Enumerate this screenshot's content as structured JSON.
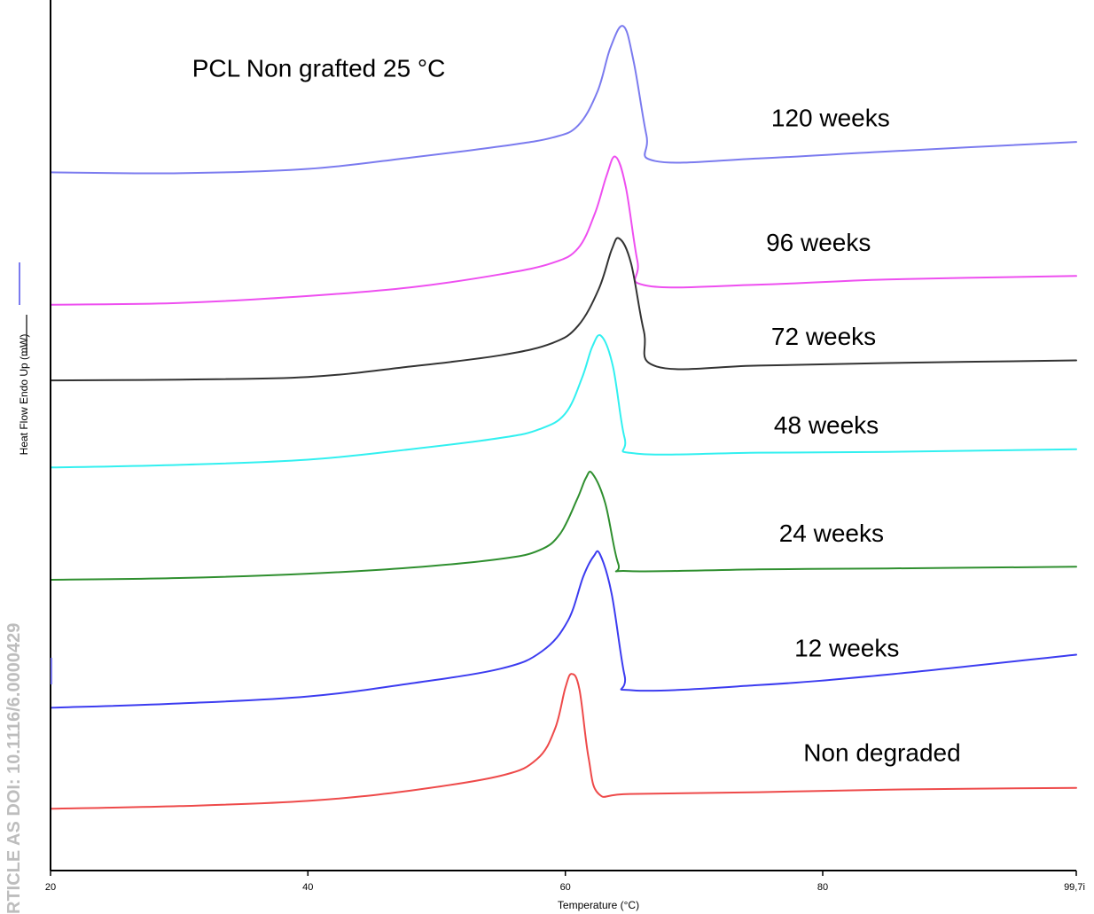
{
  "watermark": "RTICLE AS DOI: 10.1116/6.0000429",
  "chart_data": {
    "type": "line",
    "title": "PCL Non grafted 25 °C",
    "xlabel": "Temperature (°C)",
    "ylabel": "Heat Flow Endo Up (mW)",
    "xlim": [
      20,
      99.7
    ],
    "ylim": [
      0,
      100
    ],
    "grid": false,
    "x_ticks": [
      {
        "value": 20,
        "label": "20"
      },
      {
        "value": 40,
        "label": "40"
      },
      {
        "value": 60,
        "label": "60"
      },
      {
        "value": 80,
        "label": "80"
      },
      {
        "value": 99.7,
        "label": "99,7i"
      }
    ],
    "series": [
      {
        "name": "120 weeks",
        "color": "#7b7bef",
        "points": [
          [
            20,
            80.2
          ],
          [
            30,
            80.1
          ],
          [
            40,
            80.6
          ],
          [
            48,
            81.9
          ],
          [
            55,
            83.2
          ],
          [
            59,
            84.2
          ],
          [
            61,
            85.6
          ],
          [
            62.5,
            89.5
          ],
          [
            63.5,
            94.5
          ],
          [
            64.5,
            97.0
          ],
          [
            65.3,
            93.0
          ],
          [
            66.3,
            84.5
          ],
          [
            67,
            81.5
          ],
          [
            75,
            81.8
          ],
          [
            85,
            82.6
          ],
          [
            99.7,
            83.7
          ]
        ],
        "label_at": [
          76,
          85.5
        ]
      },
      {
        "name": "96 weeks",
        "color": "#ee4ff0",
        "points": [
          [
            20,
            65.0
          ],
          [
            30,
            65.2
          ],
          [
            40,
            66.0
          ],
          [
            48,
            67.0
          ],
          [
            55,
            68.5
          ],
          [
            59,
            69.8
          ],
          [
            61,
            71.5
          ],
          [
            62.3,
            75.5
          ],
          [
            63.2,
            79.8
          ],
          [
            63.9,
            82.0
          ],
          [
            64.7,
            78.5
          ],
          [
            65.6,
            70.0
          ],
          [
            66.3,
            67.2
          ],
          [
            75,
            67.3
          ],
          [
            85,
            67.9
          ],
          [
            99.7,
            68.3
          ]
        ],
        "label_at": [
          75.6,
          71.2
        ]
      },
      {
        "name": "72 weeks",
        "color": "#333333",
        "points": [
          [
            20,
            56.3
          ],
          [
            30,
            56.4
          ],
          [
            40,
            56.7
          ],
          [
            48,
            57.9
          ],
          [
            55,
            59.2
          ],
          [
            59,
            60.6
          ],
          [
            61,
            62.6
          ],
          [
            62.6,
            66.8
          ],
          [
            63.6,
            71.3
          ],
          [
            64.2,
            72.6
          ],
          [
            65.1,
            69.8
          ],
          [
            66.1,
            62.0
          ],
          [
            67.1,
            57.9
          ],
          [
            75,
            58.0
          ],
          [
            85,
            58.3
          ],
          [
            99.7,
            58.6
          ]
        ],
        "label_at": [
          76,
          60.4
        ]
      },
      {
        "name": "48 weeks",
        "color": "#32f0f0",
        "points": [
          [
            20,
            46.3
          ],
          [
            30,
            46.6
          ],
          [
            40,
            47.2
          ],
          [
            48,
            48.4
          ],
          [
            55,
            49.7
          ],
          [
            58,
            50.7
          ],
          [
            60,
            52.5
          ],
          [
            61.3,
            56.6
          ],
          [
            62.1,
            60.2
          ],
          [
            62.8,
            61.4
          ],
          [
            63.7,
            57.9
          ],
          [
            64.6,
            49.7
          ],
          [
            65.5,
            47.9
          ],
          [
            75,
            48.0
          ],
          [
            85,
            48.1
          ],
          [
            99.7,
            48.4
          ]
        ],
        "label_at": [
          76.2,
          50.2
        ]
      },
      {
        "name": "24 weeks",
        "color": "#2f8f2f",
        "points": [
          [
            20,
            33.4
          ],
          [
            30,
            33.6
          ],
          [
            40,
            34.1
          ],
          [
            48,
            34.8
          ],
          [
            55,
            35.8
          ],
          [
            58,
            36.8
          ],
          [
            59.6,
            38.7
          ],
          [
            60.9,
            42.6
          ],
          [
            61.6,
            45.1
          ],
          [
            62.1,
            45.6
          ],
          [
            63.1,
            42.2
          ],
          [
            64.1,
            35.3
          ],
          [
            65,
            34.4
          ],
          [
            75,
            34.6
          ],
          [
            85,
            34.7
          ],
          [
            99.7,
            34.9
          ]
        ],
        "label_at": [
          76.6,
          37.8
        ]
      },
      {
        "name": "12 weeks",
        "color": "#3c3cf0",
        "points": [
          [
            20,
            18.7
          ],
          [
            30,
            19.2
          ],
          [
            40,
            20.0
          ],
          [
            48,
            21.5
          ],
          [
            55,
            23.2
          ],
          [
            58.2,
            25.2
          ],
          [
            60.2,
            28.7
          ],
          [
            61.4,
            33.8
          ],
          [
            62.2,
            36.1
          ],
          [
            62.7,
            36.3
          ],
          [
            63.6,
            31.8
          ],
          [
            64.6,
            22.4
          ],
          [
            65.3,
            20.7
          ],
          [
            75,
            21.3
          ],
          [
            85,
            22.5
          ],
          [
            99.7,
            24.8
          ]
        ],
        "label_at": [
          77.8,
          24.6
        ]
      },
      {
        "name": "Non degraded",
        "color": "#ee4a4a",
        "points": [
          [
            20,
            7.1
          ],
          [
            30,
            7.4
          ],
          [
            40,
            8.0
          ],
          [
            48,
            9.2
          ],
          [
            55,
            10.9
          ],
          [
            57.8,
            12.8
          ],
          [
            59.2,
            16.3
          ],
          [
            60,
            21.0
          ],
          [
            60.5,
            22.6
          ],
          [
            61.1,
            20.8
          ],
          [
            61.8,
            13.0
          ],
          [
            62.6,
            8.8
          ],
          [
            65,
            8.8
          ],
          [
            75,
            9.0
          ],
          [
            85,
            9.3
          ],
          [
            99.7,
            9.5
          ]
        ],
        "label_at": [
          78.5,
          12.6
        ]
      }
    ],
    "title_at": [
      31,
      91.2
    ]
  }
}
